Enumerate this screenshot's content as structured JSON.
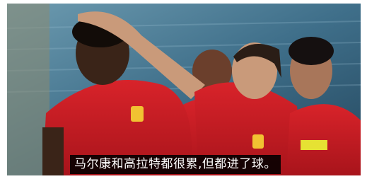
{
  "caption": "马尔康和高拉特都很累,但都进了球。"
}
